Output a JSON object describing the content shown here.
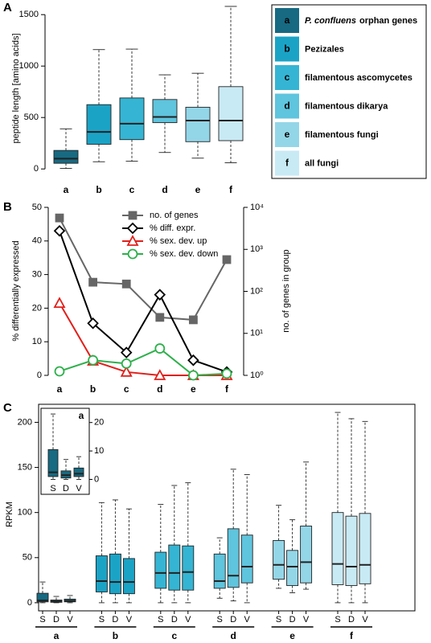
{
  "chart_data": [
    {
      "panel": "A",
      "type": "box",
      "ylabel": "peptide length [amino acids]",
      "categories": [
        "a",
        "b",
        "c",
        "d",
        "e",
        "f"
      ],
      "colors": [
        "#176a82",
        "#1ba3c6",
        "#35b5d3",
        "#5fc4dd",
        "#93d6e8",
        "#c8eaf4"
      ],
      "boxes": [
        {
          "low": 5,
          "q1": 55,
          "median": 100,
          "q3": 180,
          "high": 390
        },
        {
          "low": 70,
          "q1": 240,
          "median": 360,
          "q3": 625,
          "high": 1160
        },
        {
          "low": 75,
          "q1": 285,
          "median": 440,
          "q3": 690,
          "high": 1165
        },
        {
          "low": 160,
          "q1": 450,
          "median": 505,
          "q3": 675,
          "high": 915
        },
        {
          "low": 105,
          "q1": 265,
          "median": 470,
          "q3": 600,
          "high": 930
        },
        {
          "low": 60,
          "q1": 275,
          "median": 470,
          "q3": 800,
          "high": 1580
        }
      ],
      "ylim": [
        -50,
        1600
      ],
      "yticks": [
        0,
        500,
        1000,
        1500
      ],
      "legend": [
        {
          "italic": "P. confluens",
          "text": "orphan genes"
        },
        {
          "text": "Pezizales"
        },
        {
          "text": "filamentous ascomycetes"
        },
        {
          "text": "filamentous dikarya"
        },
        {
          "text": "filamentous fungi"
        },
        {
          "text": "all fungi"
        }
      ]
    },
    {
      "panel": "B",
      "type": "line",
      "categories": [
        "a",
        "b",
        "c",
        "d",
        "e",
        "f"
      ],
      "ylabel": "% differentially expressed",
      "y2label": "no. of genes in group",
      "ylim": [
        0,
        50
      ],
      "yticks": [
        0,
        10,
        20,
        30,
        40,
        50
      ],
      "y2lim": [
        1,
        10000
      ],
      "y2scale": "log",
      "y2ticks": [
        {
          "value": 1,
          "label": "10⁰"
        },
        {
          "value": 10,
          "label": "10¹"
        },
        {
          "value": 100,
          "label": "10²"
        },
        {
          "value": 1000,
          "label": "10³"
        },
        {
          "value": 10000,
          "label": "10⁴"
        }
      ],
      "series": [
        {
          "name": "no. of genes",
          "color": "#666666",
          "marker": "square",
          "axis": "y2",
          "values": [
            5600,
            165,
            150,
            24,
            21,
            570
          ]
        },
        {
          "name": "% diff. expr.",
          "color": "#000000",
          "marker": "diamond",
          "values": [
            43,
            15.5,
            6.8,
            24,
            4.5,
            1
          ]
        },
        {
          "name": "% sex. dev. up",
          "color": "#e0201b",
          "marker": "triangle",
          "values": [
            21.5,
            4.3,
            1,
            0,
            0,
            0
          ]
        },
        {
          "name": "% sex. dev. down",
          "color": "#2db04b",
          "marker": "circle",
          "values": [
            1.2,
            4.5,
            3.5,
            8,
            0,
            0.5
          ]
        }
      ]
    },
    {
      "panel": "C",
      "type": "grouped-box",
      "ylabel": "RPKM",
      "categories": [
        "a",
        "b",
        "c",
        "d",
        "e",
        "f"
      ],
      "subcategories": [
        "S",
        "D",
        "V"
      ],
      "colors": [
        "#176a82",
        "#1ba3c6",
        "#35b5d3",
        "#5fc4dd",
        "#93d6e8",
        "#c8eaf4"
      ],
      "boxes": [
        [
          {
            "low": 0,
            "q1": 1,
            "median": 2.5,
            "q3": 10.5,
            "high": 23
          },
          {
            "low": 0,
            "q1": 0.5,
            "median": 1.5,
            "q3": 3,
            "high": 7
          },
          {
            "low": 0,
            "q1": 1,
            "median": 2,
            "q3": 4,
            "high": 8
          }
        ],
        [
          {
            "low": 0,
            "q1": 12,
            "median": 24,
            "q3": 52,
            "high": 111
          },
          {
            "low": 0,
            "q1": 10,
            "median": 23,
            "q3": 54,
            "high": 114
          },
          {
            "low": 0,
            "q1": 10,
            "median": 23,
            "q3": 49,
            "high": 104
          }
        ],
        [
          {
            "low": 0,
            "q1": 16,
            "median": 33,
            "q3": 56,
            "high": 109
          },
          {
            "low": 0,
            "q1": 14,
            "median": 33,
            "q3": 64,
            "high": 130
          },
          {
            "low": 0,
            "q1": 14,
            "median": 34,
            "q3": 63,
            "high": 133
          }
        ],
        [
          {
            "low": 5,
            "q1": 16,
            "median": 24,
            "q3": 54,
            "high": 72
          },
          {
            "low": 2,
            "q1": 17,
            "median": 30,
            "q3": 82,
            "high": 148
          },
          {
            "low": 0,
            "q1": 22,
            "median": 40,
            "q3": 75,
            "high": 142
          }
        ],
        [
          {
            "low": 16,
            "q1": 26,
            "median": 42,
            "q3": 69,
            "high": 108
          },
          {
            "low": 11,
            "q1": 19,
            "median": 40,
            "q3": 58,
            "high": 92
          },
          {
            "low": 15,
            "q1": 22,
            "median": 45,
            "q3": 85,
            "high": 156
          }
        ],
        [
          {
            "low": 0,
            "q1": 20,
            "median": 43,
            "q3": 100,
            "high": 211
          },
          {
            "low": 0,
            "q1": 19,
            "median": 40,
            "q3": 96,
            "high": 204
          },
          {
            "low": 0,
            "q1": 21,
            "median": 42,
            "q3": 99,
            "high": 201
          }
        ]
      ],
      "ylim": [
        -9,
        220
      ],
      "yticks": [
        0,
        50,
        100,
        150,
        200
      ],
      "inset": {
        "ylim": [
          -1,
          25
        ],
        "yticks": [
          0,
          10,
          20
        ]
      }
    }
  ]
}
